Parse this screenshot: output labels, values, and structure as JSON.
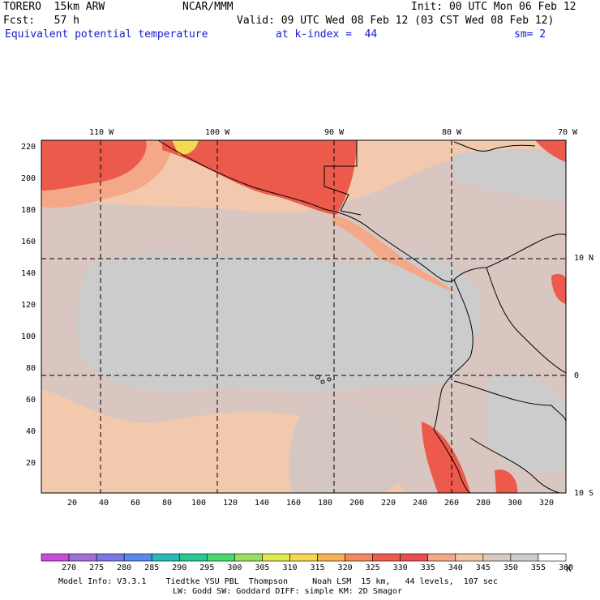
{
  "header": {
    "model": "TORERO  15km ARW",
    "org": "NCAR/MMM",
    "init": "Init: 00 UTC Mon 06 Feb 12",
    "fcst": "Fcst:   57 h",
    "valid": "Valid: 09 UTC Wed 08 Feb 12 (03 CST Wed 08 Feb 12)",
    "field": "Equivalent potential temperature",
    "level": "at k-index =  44",
    "smooth": "sm= 2"
  },
  "map": {
    "lon_labels": [
      "110 W",
      "100 W",
      "90 W",
      "80 W",
      "70 W"
    ],
    "lat_labels": [
      "10 N",
      "0",
      "10 S"
    ],
    "y_ticks": [
      "220",
      "200",
      "180",
      "160",
      "140",
      "120",
      "100",
      "80",
      "60",
      "40",
      "20"
    ],
    "x_ticks": [
      "20",
      "40",
      "60",
      "80",
      "100",
      "120",
      "140",
      "160",
      "180",
      "200",
      "220",
      "240",
      "260",
      "280",
      "300",
      "320"
    ]
  },
  "colorbar": {
    "labels": [
      "270",
      "275",
      "280",
      "285",
      "290",
      "295",
      "300",
      "305",
      "310",
      "315",
      "320",
      "325",
      "330",
      "335",
      "340",
      "345",
      "350",
      "355",
      "360"
    ],
    "unit": "K",
    "colors": [
      "#c44fd6",
      "#a070d8",
      "#7a78e6",
      "#5a88ee",
      "#2ab8b8",
      "#28c890",
      "#48d870",
      "#98e060",
      "#e0e850",
      "#f4d850",
      "#f8b050",
      "#f48860",
      "#ee5c50",
      "#e85050",
      "#f4a888",
      "#f0c8a8",
      "#d8c8c0",
      "#cccccc",
      "#ffffff"
    ]
  },
  "footer": {
    "line1": "Model Info: V3.3.1    Tiedtke YSU PBL  Thompson     Noah LSM  15 km,   44 levels,  107 sec",
    "line2": "LW: Godd SW: Goddard DIFF: simple KM: 2D Smagor"
  }
}
